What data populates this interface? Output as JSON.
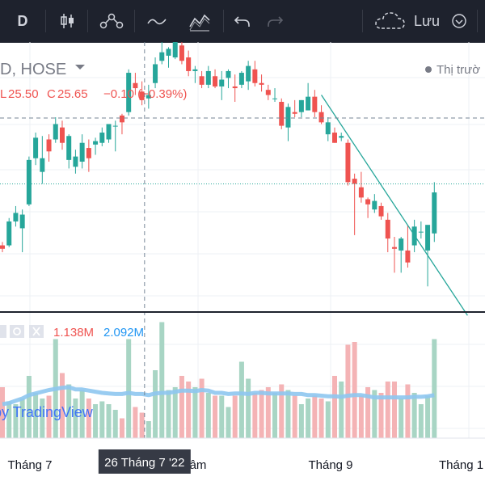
{
  "toolbar": {
    "interval": "D",
    "save_label": "Lưu",
    "icons": [
      "candles-icon",
      "indicators-icon",
      "line-tool-icon",
      "drawings-icon",
      "undo-icon",
      "redo-icon",
      "cloud-icon",
      "chevron-down-icon"
    ]
  },
  "legend": {
    "symbol": "D, HOSE",
    "ohlc": {
      "l_label": "L",
      "l": "25.50",
      "c_label": "C",
      "c": "25.65",
      "change": "−0.10 (−0.39%)"
    },
    "market_status": "Thị trườ",
    "volume_values": [
      "1.138M",
      "2.092M"
    ]
  },
  "watermark": "by TradingView",
  "time_axis": {
    "labels": [
      "Tháng 7",
      "âm",
      "Tháng 9",
      "Tháng 1"
    ],
    "crosshair_label": "26 Tháng 7 '22"
  },
  "colors": {
    "up": "#26a69a",
    "down": "#ef5350",
    "up_volume": "#a8d5c4",
    "down_volume": "#f4b3b5",
    "volume_ma": "#8ec7f0",
    "trendline": "#26a69a",
    "crosshair": "#758696",
    "toolbar_bg": "#1e222d"
  },
  "chart_data": {
    "type": "candlestick",
    "price_values": [
      [
        24.4,
        24.6,
        24.0,
        24.2
      ],
      [
        24.4,
        26.0,
        24.3,
        25.8
      ],
      [
        25.8,
        26.7,
        25.5,
        26.3
      ],
      [
        25.4,
        26.5,
        24.0,
        26.2
      ],
      [
        26.8,
        29.6,
        26.7,
        29.4
      ],
      [
        29.5,
        31.0,
        29.1,
        30.7
      ],
      [
        28.7,
        30.8,
        28.0,
        29.5
      ],
      [
        30.6,
        30.9,
        29.3,
        29.9
      ],
      [
        30.6,
        31.9,
        30.4,
        31.5
      ],
      [
        31.3,
        31.7,
        30.0,
        30.4
      ],
      [
        29.4,
        30.9,
        28.9,
        30.8
      ],
      [
        29.0,
        30.0,
        28.6,
        29.6
      ],
      [
        29.3,
        30.9,
        28.9,
        30.4
      ],
      [
        30.1,
        30.6,
        28.7,
        29.5
      ],
      [
        30.3,
        30.7,
        29.7,
        30.5
      ],
      [
        30.4,
        31.3,
        30.2,
        31.0
      ],
      [
        30.6,
        31.4,
        30.4,
        31.5
      ],
      [
        31.4,
        31.7,
        29.9,
        31.4
      ],
      [
        32.0,
        32.1,
        30.9,
        31.6
      ],
      [
        32.2,
        34.7,
        32.0,
        34.5
      ],
      [
        33.9,
        34.5,
        33.2,
        33.6
      ],
      [
        33.4,
        34.0,
        32.6,
        32.9
      ],
      [
        33.0,
        33.8,
        32.4,
        33.2
      ],
      [
        33.9,
        35.4,
        33.6,
        35.0
      ],
      [
        35.2,
        36.3,
        35.0,
        35.7
      ],
      [
        35.5,
        36.0,
        34.8,
        35.9
      ],
      [
        35.4,
        36.9,
        35.3,
        36.3
      ],
      [
        36.1,
        36.4,
        35.0,
        35.2
      ],
      [
        35.4,
        35.8,
        34.3,
        34.6
      ],
      [
        34.6,
        34.9,
        33.9,
        34.7
      ],
      [
        34.3,
        34.6,
        33.6,
        33.8
      ],
      [
        33.8,
        34.9,
        33.6,
        34.6
      ],
      [
        34.3,
        34.7,
        33.6,
        33.7
      ],
      [
        33.7,
        34.6,
        32.9,
        34.1
      ],
      [
        34.2,
        34.7,
        33.6,
        34.6
      ],
      [
        33.7,
        34.4,
        32.8,
        33.6
      ],
      [
        33.8,
        34.6,
        33.6,
        34.5
      ],
      [
        34.0,
        35.2,
        33.5,
        34.9
      ],
      [
        34.7,
        35.2,
        33.7,
        33.9
      ],
      [
        33.9,
        34.4,
        33.4,
        33.8
      ],
      [
        33.5,
        33.8,
        32.9,
        33.2
      ],
      [
        33.0,
        33.6,
        32.8,
        33.0
      ],
      [
        32.8,
        33.0,
        31.2,
        31.4
      ],
      [
        31.3,
        32.7,
        30.5,
        32.5
      ],
      [
        32.2,
        32.9,
        31.9,
        32.1
      ],
      [
        32.2,
        32.9,
        31.9,
        32.9
      ],
      [
        32.3,
        33.9,
        32.3,
        33.1
      ],
      [
        33.1,
        33.5,
        31.9,
        32.2
      ],
      [
        32.2,
        32.6,
        31.5,
        31.6
      ],
      [
        30.9,
        31.9,
        30.5,
        31.6
      ],
      [
        31.0,
        31.3,
        30.4,
        30.4
      ],
      [
        30.7,
        31.0,
        30.5,
        30.8
      ],
      [
        30.4,
        30.6,
        27.9,
        28.1
      ],
      [
        28.3,
        28.6,
        25.0,
        28.0
      ],
      [
        27.8,
        28.7,
        26.9,
        27.2
      ],
      [
        27.1,
        27.2,
        26.0,
        26.8
      ],
      [
        26.5,
        27.4,
        26.3,
        27.0
      ],
      [
        26.7,
        26.9,
        25.9,
        26.1
      ],
      [
        25.9,
        26.3,
        24.0,
        24.8
      ],
      [
        24.3,
        24.9,
        22.8,
        24.2
      ],
      [
        24.1,
        24.9,
        22.8,
        24.8
      ],
      [
        24.1,
        25.6,
        23.1,
        23.4
      ],
      [
        24.4,
        25.9,
        24.0,
        25.5
      ],
      [
        25.2,
        25.8,
        24.8,
        25.2
      ],
      [
        24.1,
        25.3,
        22.0,
        25.6
      ],
      [
        25.1,
        28.1,
        24.6,
        27.5
      ]
    ],
    "volume": [
      0.9,
      0.65,
      0.6,
      0.7,
      1.1,
      0.8,
      0.7,
      0.75,
      1.75,
      1.15,
      0.95,
      0.7,
      0.85,
      0.7,
      0.6,
      0.65,
      0.6,
      0.5,
      0.35,
      1.75,
      0.55,
      0.45,
      0.3,
      1.2,
      2.05,
      0.85,
      0.9,
      1.1,
      1.0,
      0.9,
      1.05,
      0.8,
      0.75,
      0.75,
      0.55,
      0.75,
      1.35,
      1.05,
      0.8,
      0.85,
      0.9,
      0.8,
      0.95,
      0.85,
      0.75,
      0.6,
      0.7,
      0.75,
      0.7,
      0.65,
      1.1,
      1.0,
      1.65,
      1.7,
      0.75,
      0.9,
      0.85,
      0.8,
      1.0,
      1.0,
      0.7,
      0.95,
      0.8,
      0.6,
      0.75,
      1.75
    ],
    "volume_ma": [
      0.6,
      0.62,
      0.66,
      0.7,
      0.76,
      0.79,
      0.82,
      0.85,
      0.87,
      0.89,
      0.9,
      0.86,
      0.86,
      0.84,
      0.82,
      0.8,
      0.79,
      0.78,
      0.78,
      0.8,
      0.78,
      0.78,
      0.76,
      0.79,
      0.8,
      0.8,
      0.82,
      0.84,
      0.84,
      0.83,
      0.85,
      0.84,
      0.8,
      0.8,
      0.78,
      0.79,
      0.79,
      0.78,
      0.8,
      0.8,
      0.79,
      0.79,
      0.79,
      0.79,
      0.78,
      0.78,
      0.76,
      0.76,
      0.75,
      0.74,
      0.74,
      0.73,
      0.75,
      0.76,
      0.76,
      0.74,
      0.72,
      0.72,
      0.72,
      0.72,
      0.72,
      0.72,
      0.73,
      0.73,
      0.74,
      0.76
    ],
    "trendline": {
      "from": [
        48,
        33.2
      ],
      "to": [
        70,
        20.3
      ]
    },
    "crosshair_index": 22,
    "last_price": 28.0
  }
}
